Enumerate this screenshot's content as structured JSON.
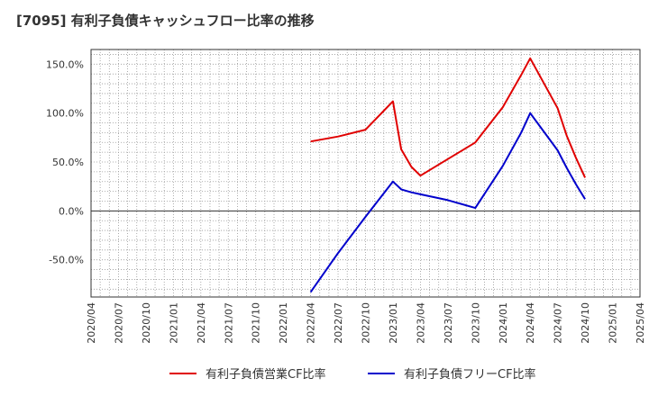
{
  "chart_data": {
    "type": "line",
    "title": "[7095]  有利子負債キャッシュフロー比率の推移",
    "xlabel": "",
    "ylabel": "",
    "ylim": [
      -88,
      165
    ],
    "yticks": [
      150,
      100,
      50,
      0,
      -50
    ],
    "ytick_labels": [
      "150.0%",
      "100.0%",
      "50.0%",
      "0.0%",
      "-50.0%"
    ],
    "xticks": [
      "2020/04",
      "2020/07",
      "2020/10",
      "2021/01",
      "2021/04",
      "2021/07",
      "2021/10",
      "2022/01",
      "2022/04",
      "2022/07",
      "2022/10",
      "2023/01",
      "2023/04",
      "2023/07",
      "2023/10",
      "2024/01",
      "2024/04",
      "2024/07",
      "2024/10",
      "2025/01",
      "2025/04"
    ],
    "grid": true,
    "legend_position": "bottom",
    "series": [
      {
        "name": "有利子負債営業CF比率",
        "color": "#e00000",
        "points": [
          {
            "x": 8.0,
            "y": 71
          },
          {
            "x": 9.0,
            "y": 76
          },
          {
            "x": 10.0,
            "y": 83
          },
          {
            "x": 11.0,
            "y": 112
          },
          {
            "x": 11.3,
            "y": 63
          },
          {
            "x": 11.67,
            "y": 45
          },
          {
            "x": 12.0,
            "y": 36
          },
          {
            "x": 13.0,
            "y": 53
          },
          {
            "x": 14.0,
            "y": 70
          },
          {
            "x": 15.0,
            "y": 106
          },
          {
            "x": 15.67,
            "y": 139
          },
          {
            "x": 16.0,
            "y": 156
          },
          {
            "x": 17.0,
            "y": 105
          },
          {
            "x": 17.33,
            "y": 77
          },
          {
            "x": 17.67,
            "y": 54
          },
          {
            "x": 18.0,
            "y": 34
          }
        ]
      },
      {
        "name": "有利子負債フリーCF比率",
        "color": "#0000cc",
        "points": [
          {
            "x": 8.0,
            "y": -83
          },
          {
            "x": 9.0,
            "y": -43
          },
          {
            "x": 10.0,
            "y": -6
          },
          {
            "x": 11.0,
            "y": 30
          },
          {
            "x": 11.3,
            "y": 22
          },
          {
            "x": 11.67,
            "y": 19
          },
          {
            "x": 12.0,
            "y": 17
          },
          {
            "x": 13.0,
            "y": 11
          },
          {
            "x": 14.0,
            "y": 3
          },
          {
            "x": 15.0,
            "y": 46
          },
          {
            "x": 15.67,
            "y": 80
          },
          {
            "x": 16.0,
            "y": 100
          },
          {
            "x": 17.0,
            "y": 62
          },
          {
            "x": 17.33,
            "y": 44
          },
          {
            "x": 17.67,
            "y": 27
          },
          {
            "x": 18.0,
            "y": 12
          }
        ]
      }
    ]
  }
}
